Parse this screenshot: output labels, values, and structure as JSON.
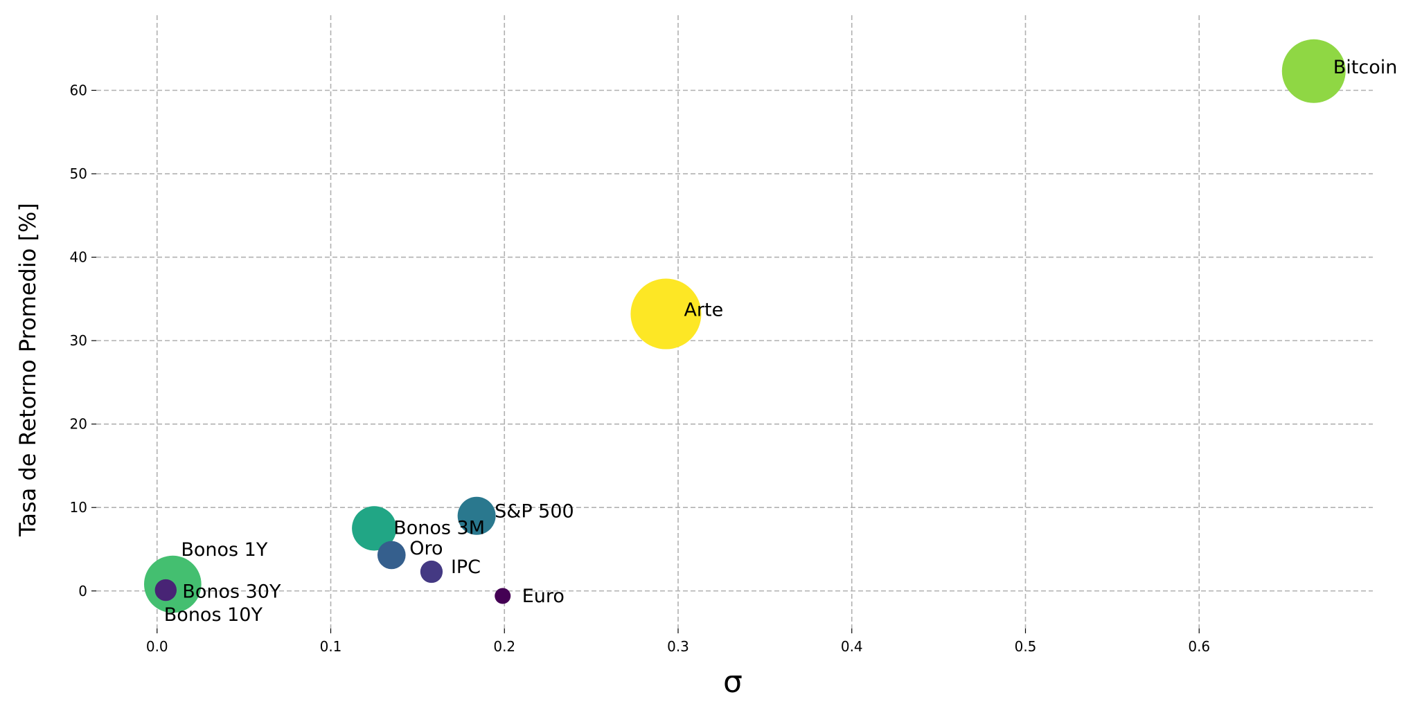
{
  "chart_data": {
    "type": "scatter",
    "title": "",
    "xlabel": "σ",
    "ylabel": "Tasa de Retorno Promedio [%]",
    "xlim": [
      -0.035,
      0.7
    ],
    "ylim": [
      -4.5,
      69
    ],
    "x_ticks": [
      0.0,
      0.1,
      0.2,
      0.3,
      0.4,
      0.5,
      0.6
    ],
    "x_tick_labels": [
      "0.0",
      "0.1",
      "0.2",
      "0.3",
      "0.4",
      "0.5",
      "0.6"
    ],
    "y_ticks": [
      0,
      10,
      20,
      30,
      40,
      50,
      60
    ],
    "y_tick_labels": [
      "0",
      "10",
      "20",
      "30",
      "40",
      "50",
      "60"
    ],
    "grid": true,
    "legend": "none",
    "colormap": "viridis",
    "points": [
      {
        "label": "Bitcoin",
        "x": 0.666,
        "y": 62.3,
        "size": 0.88,
        "color": "#8fd744"
      },
      {
        "label": "Arte",
        "x": 0.293,
        "y": 33.2,
        "size": 1.0,
        "color": "#fde725"
      },
      {
        "label": "S&P 500",
        "x": 0.184,
        "y": 9.0,
        "size": 0.44,
        "color": "#2a788e"
      },
      {
        "label": "Bonos 3M",
        "x": 0.125,
        "y": 7.5,
        "size": 0.55,
        "color": "#21a685"
      },
      {
        "label": "Oro",
        "x": 0.135,
        "y": 4.3,
        "size": 0.27,
        "color": "#355f8d"
      },
      {
        "label": "IPC",
        "x": 0.158,
        "y": 2.3,
        "size": 0.17,
        "color": "#443983"
      },
      {
        "label": "Euro",
        "x": 0.199,
        "y": -0.6,
        "size": 0.06,
        "color": "#440154"
      },
      {
        "label": "Bonos 1Y",
        "x": 0.009,
        "y": 0.8,
        "size": 0.77,
        "color": "#44bf70"
      },
      {
        "label": "Bonos 30Y",
        "x": 0.005,
        "y": 0.1,
        "size": 0.16,
        "color": "#482475"
      },
      {
        "label": "Bonos 10Y",
        "x": 0.004,
        "y": 0.0,
        "size": 0.0,
        "color": "#414487"
      }
    ]
  }
}
